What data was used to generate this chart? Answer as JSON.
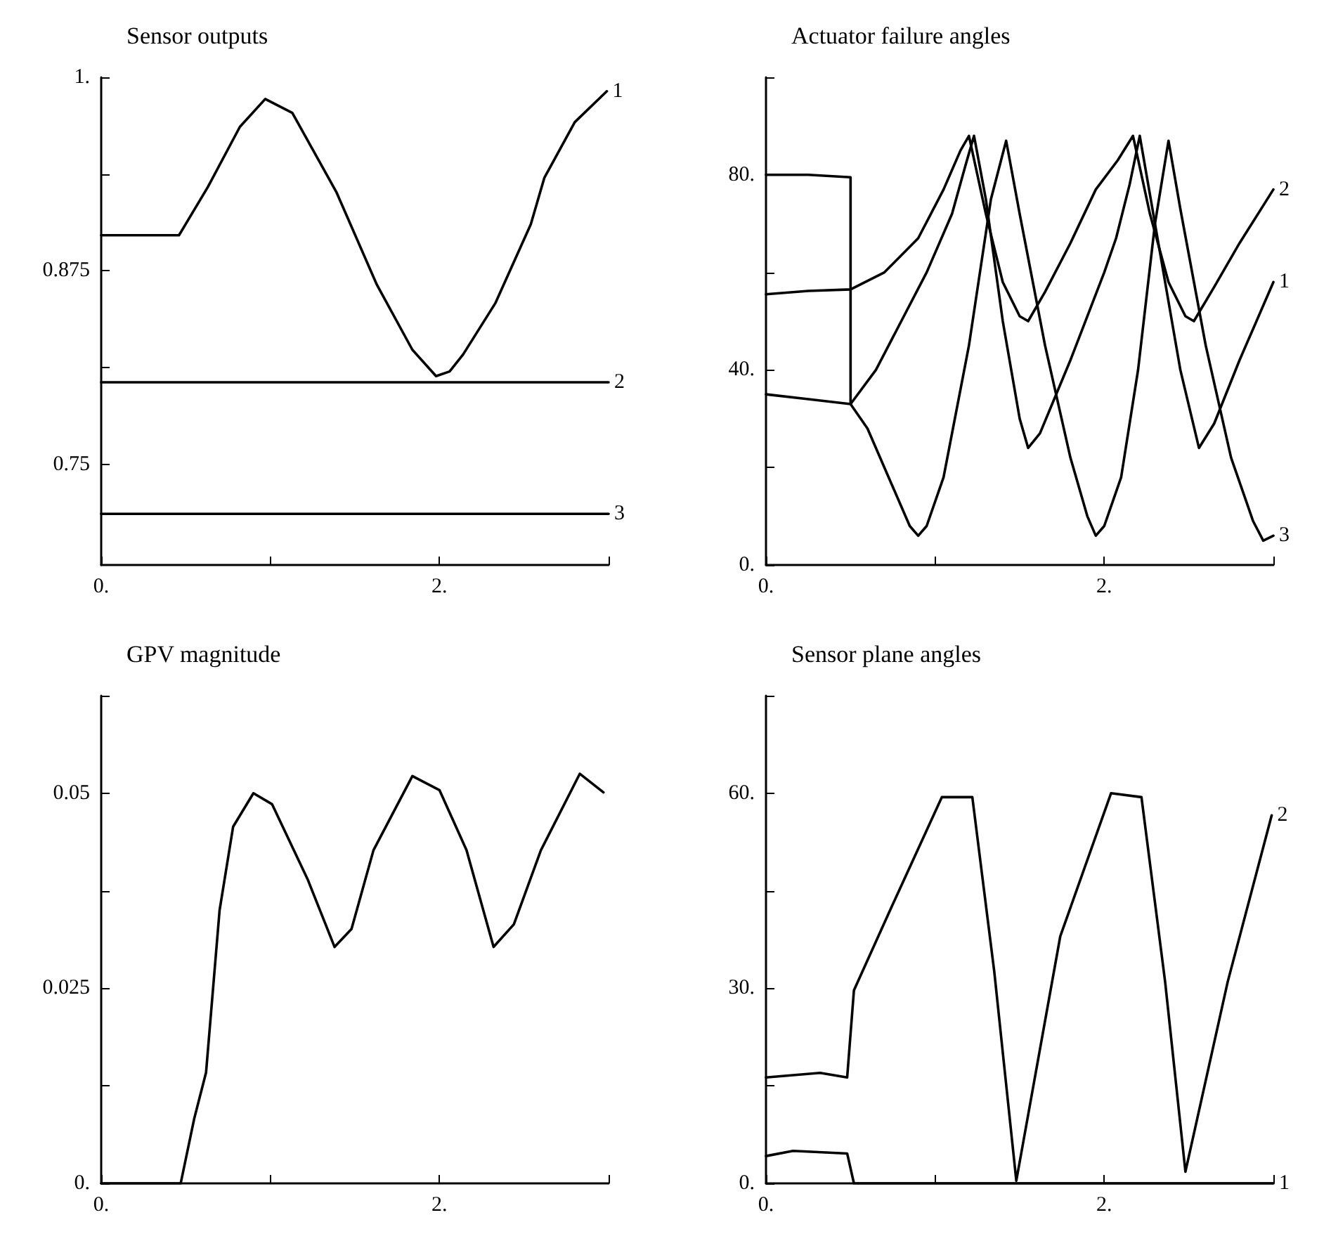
{
  "chart_data": [
    {
      "type": "line",
      "title": "Sensor outputs",
      "xlim": [
        0,
        3
      ],
      "xticks": [
        {
          "value": 0,
          "label": "0."
        },
        {
          "value": 1,
          "label": null
        },
        {
          "value": 2,
          "label": "2."
        },
        {
          "value": 3,
          "label": null
        }
      ],
      "ylim": [
        0.685,
        1
      ],
      "yticks": [
        0.75,
        {
          "value": 0.8125,
          "label": null
        },
        0.875,
        {
          "value": 0.9375,
          "label": null
        },
        {
          "value": 1,
          "label": "1."
        }
      ],
      "series": [
        {
          "name": "1",
          "color": "#000000",
          "x": [
            0,
            0.46,
            0.63,
            0.82,
            0.97,
            1.13,
            1.39,
            1.63,
            1.84,
            1.98,
            2.06,
            2.14,
            2.33,
            2.54,
            2.62,
            2.8,
            2.99
          ],
          "values": [
            0.898,
            0.898,
            0.929,
            0.968,
            0.986,
            0.977,
            0.926,
            0.866,
            0.824,
            0.807,
            0.81,
            0.821,
            0.854,
            0.905,
            0.935,
            0.971,
            0.991
          ]
        },
        {
          "name": "2",
          "color": "#000000",
          "x": [
            0,
            3
          ],
          "values": [
            0.803,
            0.803
          ]
        },
        {
          "name": "3",
          "color": "#000000",
          "x": [
            0,
            3
          ],
          "values": [
            0.718,
            0.718
          ]
        }
      ]
    },
    {
      "type": "line",
      "title": "Actuator failure angles",
      "xlim": [
        0,
        3
      ],
      "xticks": [
        {
          "value": 0,
          "label": "0."
        },
        {
          "value": 1,
          "label": null
        },
        {
          "value": 2,
          "label": "2."
        },
        {
          "value": 3,
          "label": null
        }
      ],
      "ylim": [
        0,
        100
      ],
      "yticks": [
        {
          "value": 0,
          "label": "0."
        },
        {
          "value": 20,
          "label": null
        },
        {
          "value": 40,
          "label": "40."
        },
        {
          "value": 60,
          "label": null
        },
        {
          "value": 80,
          "label": "80."
        },
        {
          "value": 100,
          "label": null
        }
      ],
      "series": [
        {
          "name": "1",
          "color": "#000000",
          "x": [
            0,
            0.25,
            0.5,
            0.5,
            0.65,
            0.8,
            0.95,
            1.1,
            1.18,
            1.23,
            1.3,
            1.4,
            1.5,
            1.55,
            1.62,
            1.8,
            2.0,
            2.07,
            2.15,
            2.21,
            2.3,
            2.45,
            2.56,
            2.65,
            2.8,
            3.0
          ],
          "values": [
            80,
            80,
            79.5,
            33,
            40,
            50,
            60,
            72,
            82,
            88,
            75,
            50,
            30,
            24,
            27,
            42,
            60,
            67,
            78,
            88,
            70,
            40,
            24,
            29,
            42,
            58
          ]
        },
        {
          "name": "2",
          "color": "#000000",
          "x": [
            0,
            0.25,
            0.5,
            0.7,
            0.9,
            1.05,
            1.15,
            1.2,
            1.3,
            1.4,
            1.5,
            1.55,
            1.65,
            1.8,
            1.95,
            2.08,
            2.17,
            2.27,
            2.38,
            2.48,
            2.53,
            2.65,
            2.8,
            3.0
          ],
          "values": [
            55.5,
            56.2,
            56.5,
            60,
            67,
            77,
            85,
            88,
            72,
            58,
            51,
            50,
            56,
            66,
            77,
            83,
            88,
            72,
            58,
            51,
            50,
            57,
            66,
            77
          ]
        },
        {
          "name": "3",
          "color": "#000000",
          "x": [
            0,
            0.25,
            0.5,
            0.6,
            0.75,
            0.85,
            0.9,
            0.95,
            1.05,
            1.2,
            1.33,
            1.42,
            1.5,
            1.65,
            1.8,
            1.9,
            1.95,
            2.0,
            2.1,
            2.2,
            2.3,
            2.38,
            2.45,
            2.6,
            2.75,
            2.88,
            2.94,
            3.0
          ],
          "values": [
            35,
            34,
            33,
            28,
            16,
            8,
            6,
            8,
            18,
            45,
            75,
            87,
            72,
            45,
            22,
            10,
            6,
            8,
            18,
            40,
            70,
            87,
            73,
            45,
            22,
            9,
            5,
            6
          ]
        }
      ]
    },
    {
      "type": "line",
      "title": "GPV magnitude",
      "xlim": [
        0,
        3
      ],
      "xticks": [
        {
          "value": 0,
          "label": "0."
        },
        {
          "value": 1,
          "label": null
        },
        {
          "value": 2,
          "label": "2."
        },
        {
          "value": 3,
          "label": null
        }
      ],
      "ylim": [
        0,
        0.0625
      ],
      "yticks": [
        {
          "value": 0,
          "label": "0."
        },
        {
          "value": 0.0125,
          "label": null
        },
        0.025,
        {
          "value": 0.0375,
          "label": null
        },
        0.05,
        {
          "value": 0.0625,
          "label": null
        }
      ],
      "series": [
        {
          "color": "#000000",
          "x": [
            0,
            0.47,
            0.55,
            0.62,
            0.7,
            0.78,
            0.9,
            1.01,
            1.22,
            1.38,
            1.48,
            1.61,
            1.84,
            2.0,
            2.16,
            2.32,
            2.44,
            2.6,
            2.83,
            2.97
          ],
          "values": [
            0,
            0,
            0.0083,
            0.0142,
            0.035,
            0.0457,
            0.05,
            0.0486,
            0.039,
            0.0303,
            0.0326,
            0.0427,
            0.0522,
            0.0504,
            0.0427,
            0.0303,
            0.0332,
            0.0427,
            0.0525,
            0.0501
          ]
        }
      ]
    },
    {
      "type": "line",
      "title": "Sensor plane angles",
      "xlim": [
        0,
        3
      ],
      "xticks": [
        {
          "value": 0,
          "label": "0."
        },
        {
          "value": 1,
          "label": null
        },
        {
          "value": 2,
          "label": "2."
        },
        {
          "value": 3,
          "label": null
        }
      ],
      "ylim": [
        0,
        75
      ],
      "yticks": [
        {
          "value": 0,
          "label": "0."
        },
        {
          "value": 15,
          "label": null
        },
        {
          "value": 30,
          "label": "30."
        },
        {
          "value": 45,
          "label": null
        },
        {
          "value": 60,
          "label": "60."
        },
        {
          "value": 75,
          "label": null
        }
      ],
      "series": [
        {
          "name": "1",
          "color": "#000000",
          "x": [
            0,
            0.16,
            0.48,
            0.52,
            3.0
          ],
          "values": [
            4.2,
            5,
            4.6,
            0,
            0
          ]
        },
        {
          "name": "2",
          "color": "#000000",
          "x": [
            0,
            0.32,
            0.48,
            0.52,
            0.73,
            1.04,
            1.22,
            1.35,
            1.48,
            1.74,
            2.04,
            2.22,
            2.36,
            2.48,
            2.73,
            2.99
          ],
          "values": [
            16.3,
            17,
            16.3,
            29.7,
            41.8,
            59.4,
            59.4,
            32.5,
            0.4,
            38,
            60,
            59.4,
            31,
            1.8,
            31,
            56.6
          ]
        }
      ]
    }
  ]
}
